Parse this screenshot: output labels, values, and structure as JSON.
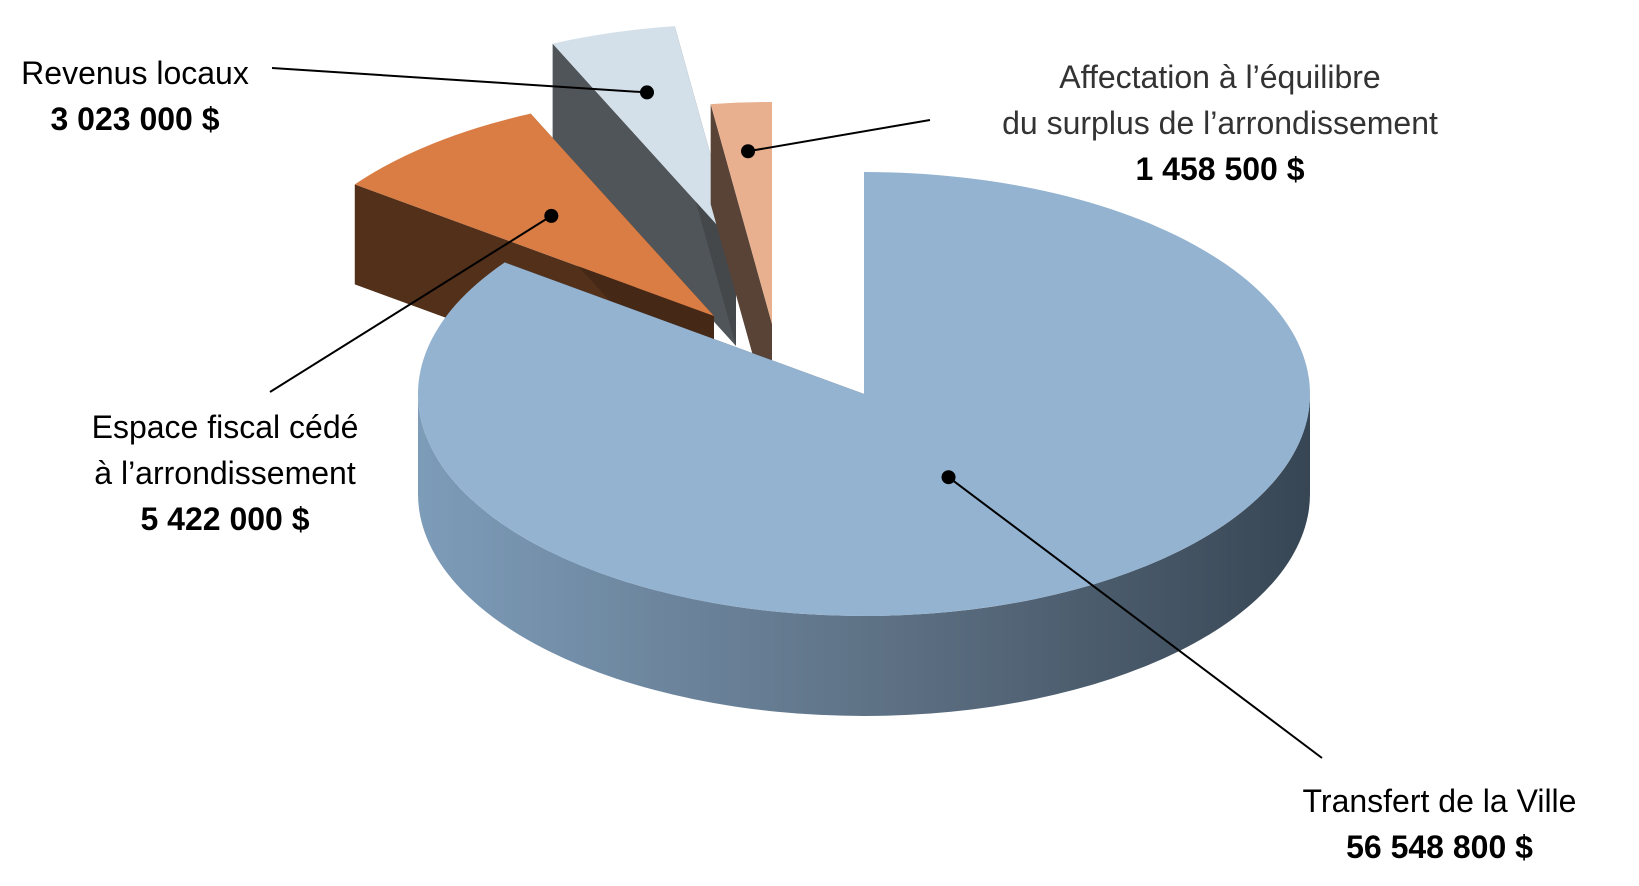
{
  "chart_data": {
    "type": "pie",
    "style": "3d-exploded",
    "title": "",
    "legend": "none",
    "slices": [
      {
        "name_lines": [
          "Transfert de la Ville"
        ],
        "value": 56548800,
        "value_label": "56 548 800 $",
        "color": "#93B3D1"
      },
      {
        "name_lines": [
          "Espace fiscal cédé",
          "à l’arrondissement"
        ],
        "value": 5422000,
        "value_label": "5 422 000 $",
        "color": "#D97D45"
      },
      {
        "name_lines": [
          "Revenus locaux"
        ],
        "value": 3023000,
        "value_label": "3 023 000 $",
        "color": "#D3E0EA"
      },
      {
        "name_lines": [
          "Affectation à l’équilibre",
          "du surplus de l’arrondissement"
        ],
        "value": 1458500,
        "value_label": "1 458 500 $",
        "color": "#E8B08E"
      }
    ]
  }
}
